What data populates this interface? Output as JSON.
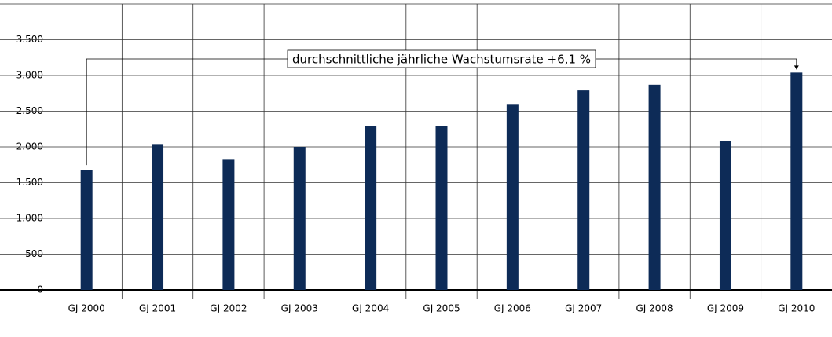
{
  "chart_data": {
    "type": "bar",
    "categories": [
      "GJ 2000",
      "GJ 2001",
      "GJ 2002",
      "GJ 2003",
      "GJ 2004",
      "GJ 2005",
      "GJ 2006",
      "GJ 2007",
      "GJ 2008",
      "GJ 2009",
      "GJ 2010"
    ],
    "values": [
      1680,
      2040,
      1820,
      2000,
      2290,
      2290,
      2590,
      2790,
      2870,
      2080,
      3040
    ],
    "color": "#0d2b57",
    "ylim": [
      0,
      4000
    ],
    "yticks": [
      0,
      500,
      {
        "value": 1000,
        "label": "1.000"
      },
      {
        "value": 1500,
        "label": "1.500"
      },
      {
        "value": 2000,
        "label": "2.000"
      },
      {
        "value": 2500,
        "label": "2.500"
      },
      {
        "value": 3000,
        "label": "3.000"
      },
      {
        "value": 3500,
        "label": "3.500"
      }
    ],
    "grid": true,
    "annotation": "durchschnittliche jährliche Wachstumsrate +6,1 %"
  }
}
